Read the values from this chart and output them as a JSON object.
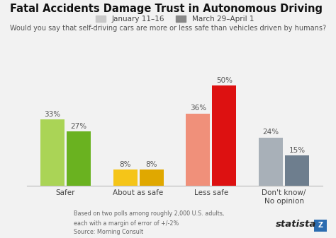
{
  "title": "Fatal Accidents Damage Trust in Autonomous Driving",
  "subtitle": "Would you say that self-driving cars are more or less safe than vehicles driven by humans?",
  "categories": [
    "Safer",
    "About as safe",
    "Less safe",
    "Don't know/\nNo opinion"
  ],
  "legend_labels": [
    "January 11–16",
    "March 29–April 1"
  ],
  "values_jan": [
    33,
    8,
    36,
    24
  ],
  "values_mar": [
    27,
    8,
    50,
    15
  ],
  "bar_colors_jan": [
    "#aad456",
    "#f5c518",
    "#f0907a",
    "#a8b0b8"
  ],
  "bar_colors_mar": [
    "#6ab220",
    "#e0a800",
    "#dd1111",
    "#6e7e8e"
  ],
  "legend_colors": [
    "#c8c8c8",
    "#888888"
  ],
  "background_color": "#f2f2f2",
  "footnote1": "Based on two polls among roughly 2,000 U.S. adults,",
  "footnote2": "each with a margin of error of +/-2%",
  "footnote3": "Source: Morning Consult",
  "ylim": [
    0,
    57
  ]
}
